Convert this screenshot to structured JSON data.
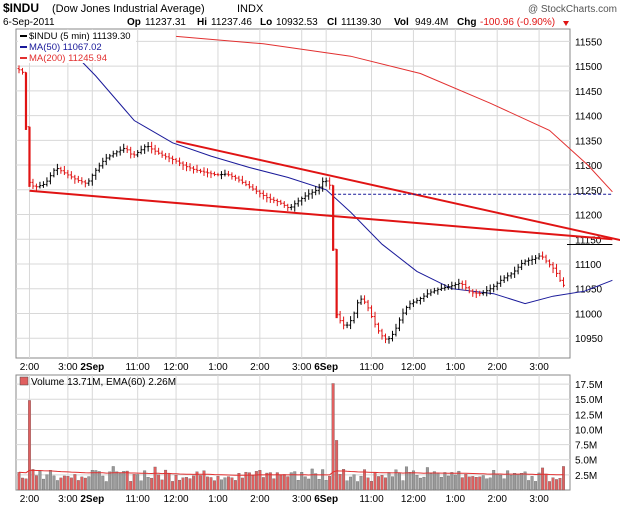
{
  "header": {
    "symbol": "$INDU",
    "name": "(Dow Jones Industrial Average)",
    "exchange": "INDX",
    "copyright": "@ StockCharts.com",
    "date": "6-Sep-2011",
    "op_label": "Op",
    "op": "11237.31",
    "hi_label": "Hi",
    "hi": "11237.46",
    "lo_label": "Lo",
    "lo": "10932.53",
    "cl_label": "Cl",
    "cl": "11139.30",
    "vol_label": "Vol",
    "vol": "949.4M",
    "chg_label": "Chg",
    "chg": "-100.96 (-0.90%)"
  },
  "colors": {
    "price_up": "#000000",
    "price_down": "#e01414",
    "ma50": "#1a1a9a",
    "ma200": "#e23030",
    "trendline": "#e01414",
    "vol_up": "#9a9a9a",
    "vol_down": "#e06060",
    "grid": "#d8d8d8",
    "neg": "#e01414"
  },
  "chart_data": [
    {
      "type": "ohlc",
      "legend": [
        {
          "text": "$INDU (5 min) 11139.30",
          "color": "#000000"
        },
        {
          "text": "MA(50) 11067.02",
          "color": "#1a1a9a"
        },
        {
          "text": "MA(200) 11245.94",
          "color": "#e23030"
        }
      ],
      "y_ticks": [
        10950,
        11000,
        11050,
        11100,
        11150,
        11200,
        11250,
        11300,
        11350,
        11400,
        11450,
        11500,
        11550
      ],
      "ylim": [
        10910,
        11575
      ],
      "x_labels": [
        "2:00",
        "3:00",
        "2Sep",
        "11:00",
        "12:00",
        "1:00",
        "2:00",
        "3:00",
        "6Sep",
        "11:00",
        "12:00",
        "1:00",
        "2:00",
        "3:00"
      ],
      "x_label_index": [
        3,
        14,
        21,
        34,
        45,
        57,
        69,
        81,
        88,
        101,
        113,
        125,
        137,
        149
      ],
      "bold_labels": [
        "2Sep",
        "6Sep"
      ],
      "bars": 157,
      "close_path": [
        [
          0,
          11495
        ],
        [
          1,
          11490
        ],
        [
          2,
          11485
        ],
        [
          3,
          11270
        ],
        [
          4,
          11260
        ],
        [
          5,
          11255
        ],
        [
          8,
          11262
        ],
        [
          11,
          11295
        ],
        [
          14,
          11282
        ],
        [
          17,
          11270
        ],
        [
          20,
          11262
        ],
        [
          22,
          11285
        ],
        [
          25,
          11312
        ],
        [
          28,
          11325
        ],
        [
          31,
          11335
        ],
        [
          33,
          11318
        ],
        [
          35,
          11328
        ],
        [
          37,
          11340
        ],
        [
          39,
          11330
        ],
        [
          42,
          11318
        ],
        [
          45,
          11310
        ],
        [
          48,
          11298
        ],
        [
          51,
          11290
        ],
        [
          54,
          11285
        ],
        [
          57,
          11280
        ],
        [
          60,
          11282
        ],
        [
          63,
          11272
        ],
        [
          66,
          11258
        ],
        [
          69,
          11245
        ],
        [
          72,
          11232
        ],
        [
          75,
          11225
        ],
        [
          78,
          11212
        ],
        [
          80,
          11225
        ],
        [
          83,
          11240
        ],
        [
          86,
          11250
        ],
        [
          88,
          11272
        ],
        [
          90,
          11255
        ],
        [
          91,
          11005
        ],
        [
          92,
          10990
        ],
        [
          94,
          10972
        ],
        [
          96,
          10990
        ],
        [
          98,
          11032
        ],
        [
          100,
          11020
        ],
        [
          102,
          10985
        ],
        [
          104,
          10958
        ],
        [
          106,
          10945
        ],
        [
          108,
          10962
        ],
        [
          110,
          10995
        ],
        [
          112,
          11018
        ],
        [
          115,
          11028
        ],
        [
          118,
          11042
        ],
        [
          121,
          11050
        ],
        [
          124,
          11055
        ],
        [
          127,
          11062
        ],
        [
          130,
          11042
        ],
        [
          133,
          11040
        ],
        [
          136,
          11052
        ],
        [
          139,
          11070
        ],
        [
          142,
          11082
        ],
        [
          145,
          11105
        ],
        [
          148,
          11110
        ],
        [
          150,
          11118
        ],
        [
          152,
          11102
        ],
        [
          154,
          11088
        ],
        [
          156,
          11060
        ],
        [
          158,
          11048
        ],
        [
          160,
          11040
        ],
        [
          162,
          11048
        ],
        [
          164,
          11082
        ],
        [
          166,
          11108
        ],
        [
          168,
          11132
        ],
        [
          169,
          11139.3
        ]
      ],
      "ma50_path": [
        [
          11,
          11560
        ],
        [
          22,
          11480
        ],
        [
          33,
          11390
        ],
        [
          44,
          11345
        ],
        [
          55,
          11318
        ],
        [
          66,
          11295
        ],
        [
          77,
          11275
        ],
        [
          88,
          11250
        ],
        [
          95,
          11205
        ],
        [
          104,
          11140
        ],
        [
          114,
          11085
        ],
        [
          124,
          11050
        ],
        [
          136,
          11040
        ],
        [
          145,
          11020
        ],
        [
          153,
          11035
        ],
        [
          162,
          11045
        ],
        [
          170,
          11067
        ]
      ],
      "ma200_path": [
        [
          45,
          11560
        ],
        [
          70,
          11545
        ],
        [
          95,
          11520
        ],
        [
          115,
          11485
        ],
        [
          135,
          11425
        ],
        [
          152,
          11370
        ],
        [
          163,
          11300
        ],
        [
          170,
          11246
        ]
      ],
      "trendlines": [
        {
          "from": [
            3,
            11248
          ],
          "to": [
            170,
            11150
          ]
        },
        {
          "from": [
            45,
            11348
          ],
          "to": [
            184,
            11130
          ]
        }
      ],
      "dashed_level": {
        "value": 11241,
        "from": 90,
        "to": 170
      },
      "close_marker": {
        "value": 11139.3,
        "from": 157,
        "to": 170
      }
    },
    {
      "type": "bar",
      "legend": "Volume 13.71M, EMA(60) 2.26M",
      "y_ticks": [
        "2.5M",
        "5.0M",
        "7.5M",
        "10.0M",
        "12.5M",
        "15.0M",
        "17.5M"
      ],
      "y_values": [
        2.5,
        5,
        7.5,
        10,
        12.5,
        15,
        17.5
      ],
      "ylim": [
        0,
        19
      ],
      "spikes": [
        [
          3,
          14.8
        ],
        [
          4,
          3.4
        ],
        [
          90,
          17.6
        ],
        [
          91,
          8.2
        ],
        [
          92,
          2.6
        ],
        [
          167,
          3.8
        ],
        [
          168,
          5.4
        ],
        [
          169,
          13.71
        ]
      ],
      "ema": 2.26
    }
  ]
}
